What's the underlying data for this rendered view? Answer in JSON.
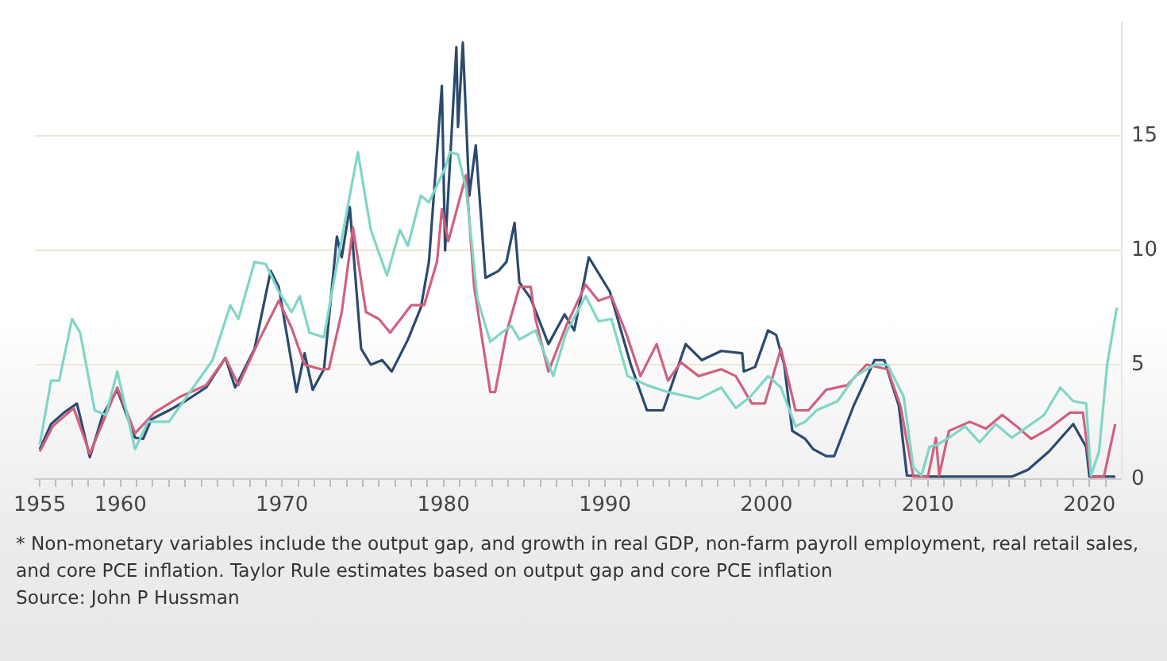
{
  "chart_data": {
    "type": "line",
    "xlim": [
      1954.7,
      2022
    ],
    "ylim": [
      0,
      20
    ],
    "yticks": [
      0,
      5,
      10,
      15
    ],
    "xticks": [
      1955,
      {
        "value": 1956,
        "label": null
      },
      {
        "value": 1957,
        "label": null
      },
      {
        "value": 1958,
        "label": null
      },
      {
        "value": 1959,
        "label": null
      },
      1960,
      {
        "value": 1961,
        "label": null
      },
      {
        "value": 1962,
        "label": null
      },
      {
        "value": 1963,
        "label": null
      },
      {
        "value": 1964,
        "label": null
      },
      {
        "value": 1965,
        "label": null
      },
      {
        "value": 1966,
        "label": null
      },
      {
        "value": 1967,
        "label": null
      },
      {
        "value": 1968,
        "label": null
      },
      {
        "value": 1969,
        "label": null
      },
      1970,
      {
        "value": 1971,
        "label": null
      },
      {
        "value": 1972,
        "label": null
      },
      {
        "value": 1973,
        "label": null
      },
      {
        "value": 1974,
        "label": null
      },
      {
        "value": 1975,
        "label": null
      },
      {
        "value": 1976,
        "label": null
      },
      {
        "value": 1977,
        "label": null
      },
      {
        "value": 1978,
        "label": null
      },
      {
        "value": 1979,
        "label": null
      },
      1980,
      {
        "value": 1981,
        "label": null
      },
      {
        "value": 1982,
        "label": null
      },
      {
        "value": 1983,
        "label": null
      },
      {
        "value": 1984,
        "label": null
      },
      {
        "value": 1985,
        "label": null
      },
      {
        "value": 1986,
        "label": null
      },
      {
        "value": 1987,
        "label": null
      },
      {
        "value": 1988,
        "label": null
      },
      {
        "value": 1989,
        "label": null
      },
      1990,
      {
        "value": 1991,
        "label": null
      },
      {
        "value": 1992,
        "label": null
      },
      {
        "value": 1993,
        "label": null
      },
      {
        "value": 1994,
        "label": null
      },
      {
        "value": 1995,
        "label": null
      },
      {
        "value": 1996,
        "label": null
      },
      {
        "value": 1997,
        "label": null
      },
      {
        "value": 1998,
        "label": null
      },
      {
        "value": 1999,
        "label": null
      },
      2000,
      {
        "value": 2001,
        "label": null
      },
      {
        "value": 2002,
        "label": null
      },
      {
        "value": 2003,
        "label": null
      },
      {
        "value": 2004,
        "label": null
      },
      {
        "value": 2005,
        "label": null
      },
      {
        "value": 2006,
        "label": null
      },
      {
        "value": 2007,
        "label": null
      },
      {
        "value": 2008,
        "label": null
      },
      {
        "value": 2009,
        "label": null
      },
      2010,
      {
        "value": 2011,
        "label": null
      },
      {
        "value": 2012,
        "label": null
      },
      {
        "value": 2013,
        "label": null
      },
      {
        "value": 2014,
        "label": null
      },
      {
        "value": 2015,
        "label": null
      },
      {
        "value": 2016,
        "label": null
      },
      {
        "value": 2017,
        "label": null
      },
      {
        "value": 2018,
        "label": null
      },
      {
        "value": 2019,
        "label": null
      },
      2020,
      {
        "value": 2021,
        "label": null
      }
    ],
    "grid": "y",
    "legend": false,
    "series": [
      {
        "color": "#7fd6c6",
        "x": [
          1955.0,
          1955.7,
          1956.2,
          1957.0,
          1957.5,
          1958.4,
          1959.1,
          1959.8,
          1960.9,
          1961.7,
          1963.0,
          1964.4,
          1965.7,
          1966.8,
          1967.3,
          1968.3,
          1969.0,
          1969.8,
          1970.6,
          1971.1,
          1971.7,
          1972.6,
          1973.2,
          1974.7,
          1975.5,
          1976.5,
          1977.3,
          1977.8,
          1978.6,
          1979.1,
          1980.1,
          1980.4,
          1980.9,
          1981.4,
          1982.1,
          1982.9,
          1983.6,
          1984.2,
          1984.7,
          1985.7,
          1986.8,
          1987.6,
          1988.8,
          1989.6,
          1990.4,
          1991.4,
          1992.6,
          1993.9,
          1995.8,
          1997.2,
          1998.1,
          1999.0,
          2000.1,
          2000.9,
          2001.8,
          2002.4,
          2003.1,
          2004.4,
          2005.5,
          2006.7,
          2007.5,
          2008.5,
          2009.1,
          2009.6,
          2010.1,
          2010.6,
          2011.3,
          2012.3,
          2013.2,
          2014.2,
          2015.2,
          2016.2,
          2017.2,
          2018.2,
          2019.0,
          2019.8,
          2020.1,
          2020.6,
          2021.1,
          2021.7
        ],
        "values": [
          1.5,
          4.3,
          4.3,
          7.0,
          6.4,
          3.0,
          2.8,
          4.7,
          1.3,
          2.5,
          2.5,
          3.9,
          5.2,
          7.6,
          7.0,
          9.5,
          9.4,
          8.2,
          7.3,
          8.0,
          6.4,
          6.2,
          8.6,
          14.3,
          10.9,
          8.9,
          10.9,
          10.2,
          12.4,
          12.1,
          13.6,
          14.3,
          14.2,
          12.7,
          7.9,
          6.0,
          6.4,
          6.7,
          6.1,
          6.5,
          4.5,
          6.4,
          8.0,
          6.9,
          7.0,
          4.5,
          4.1,
          3.8,
          3.5,
          4.0,
          3.1,
          3.6,
          4.5,
          4.0,
          2.3,
          2.5,
          3.0,
          3.4,
          4.5,
          5.0,
          5.0,
          3.6,
          0.5,
          0.15,
          1.4,
          1.5,
          1.8,
          2.3,
          1.6,
          2.4,
          1.8,
          2.3,
          2.8,
          4.0,
          3.4,
          3.3,
          0.15,
          1.2,
          5.0,
          7.5
        ]
      },
      {
        "color": "#d0607e",
        "x": [
          1955.0,
          1955.8,
          1957.1,
          1958.1,
          1959.8,
          1960.9,
          1962.1,
          1963.7,
          1965.3,
          1966.5,
          1967.3,
          1968.6,
          1969.8,
          1970.6,
          1971.4,
          1972.4,
          1972.9,
          1973.7,
          1974.4,
          1975.2,
          1976.0,
          1976.7,
          1978.0,
          1978.8,
          1979.6,
          1979.9,
          1980.3,
          1981.4,
          1981.9,
          1982.9,
          1983.2,
          1983.9,
          1984.7,
          1985.4,
          1985.7,
          1986.5,
          1987.6,
          1988.8,
          1989.6,
          1990.4,
          1991.3,
          1992.2,
          1993.2,
          1993.9,
          1994.7,
          1995.8,
          1997.2,
          1998.1,
          1999.1,
          1999.9,
          2000.9,
          2001.8,
          2002.6,
          2003.7,
          2005.0,
          2006.2,
          2007.5,
          2008.3,
          2009.1,
          2010.0,
          2010.5,
          2010.7,
          2011.3,
          2012.6,
          2013.6,
          2014.6,
          2015.5,
          2016.4,
          2017.5,
          2018.8,
          2019.6,
          2020.1,
          2020.9,
          2021.6
        ],
        "values": [
          1.2,
          2.3,
          3.1,
          1.1,
          4.0,
          2.0,
          2.9,
          3.6,
          4.1,
          5.3,
          4.1,
          6.1,
          7.8,
          6.6,
          5.0,
          4.8,
          4.8,
          7.3,
          11.0,
          7.3,
          7.0,
          6.4,
          7.6,
          7.6,
          9.5,
          11.8,
          10.4,
          13.3,
          8.4,
          3.8,
          3.8,
          6.4,
          8.4,
          8.4,
          7.0,
          4.7,
          6.7,
          8.5,
          7.8,
          8.0,
          6.4,
          4.5,
          5.9,
          4.3,
          5.1,
          4.5,
          4.8,
          4.5,
          3.3,
          3.3,
          5.7,
          3.0,
          3.0,
          3.9,
          4.1,
          5.0,
          4.8,
          3.2,
          0.1,
          0.1,
          1.8,
          0.15,
          2.1,
          2.5,
          2.2,
          2.8,
          2.3,
          1.75,
          2.2,
          2.9,
          2.9,
          0.1,
          0.1,
          2.4
        ]
      },
      {
        "color": "#2b4a6f",
        "x": [
          1955.0,
          1955.7,
          1956.5,
          1957.3,
          1958.1,
          1958.9,
          1959.8,
          1960.9,
          1961.4,
          1961.9,
          1963.0,
          1964.0,
          1965.3,
          1966.5,
          1967.1,
          1968.3,
          1969.3,
          1969.8,
          1970.9,
          1971.4,
          1971.9,
          1972.6,
          1973.4,
          1973.7,
          1974.2,
          1974.9,
          1975.5,
          1976.2,
          1976.8,
          1977.8,
          1978.6,
          1979.1,
          1979.9,
          1980.1,
          1980.8,
          1980.9,
          1981.2,
          1981.6,
          1982.0,
          1982.6,
          1983.4,
          1983.9,
          1984.4,
          1984.7,
          1985.4,
          1986.5,
          1987.5,
          1988.1,
          1989.0,
          1990.3,
          1991.6,
          1992.6,
          1993.6,
          1995.0,
          1996.0,
          1997.2,
          1998.5,
          1998.6,
          1999.3,
          2000.1,
          2000.6,
          2001.1,
          2001.6,
          2002.4,
          2002.9,
          2003.7,
          2004.2,
          2005.4,
          2006.7,
          2007.3,
          2008.2,
          2008.7,
          2010.0,
          2015.2,
          2016.2,
          2017.5,
          2019.0,
          2019.8,
          2020.0,
          2021.6
        ],
        "values": [
          1.3,
          2.4,
          2.9,
          3.3,
          0.95,
          2.8,
          3.9,
          1.8,
          1.75,
          2.6,
          3.0,
          3.4,
          4.0,
          5.3,
          4.0,
          5.7,
          9.1,
          8.4,
          3.8,
          5.5,
          3.9,
          4.8,
          10.6,
          9.7,
          11.9,
          5.7,
          5.0,
          5.2,
          4.7,
          6.1,
          7.5,
          9.5,
          17.2,
          10.0,
          18.9,
          15.4,
          19.1,
          12.4,
          14.6,
          8.8,
          9.1,
          9.5,
          11.2,
          8.6,
          7.9,
          5.9,
          7.2,
          6.5,
          9.7,
          8.2,
          5.0,
          3.0,
          3.0,
          5.9,
          5.2,
          5.6,
          5.5,
          4.7,
          4.9,
          6.5,
          6.3,
          5.0,
          2.1,
          1.75,
          1.3,
          1.0,
          1.0,
          3.2,
          5.2,
          5.2,
          3.2,
          0.15,
          0.1,
          0.1,
          0.4,
          1.2,
          2.4,
          1.4,
          0.1,
          0.1
        ]
      }
    ],
    "annotations": [
      "* Non-monetary variables include the output gap, and growth in real GDP, non-farm payroll employment, real retail sales, and core PCE inflation. Taylor Rule estimates based on output gap and core PCE inflation",
      "Source: John P Hussman"
    ]
  }
}
